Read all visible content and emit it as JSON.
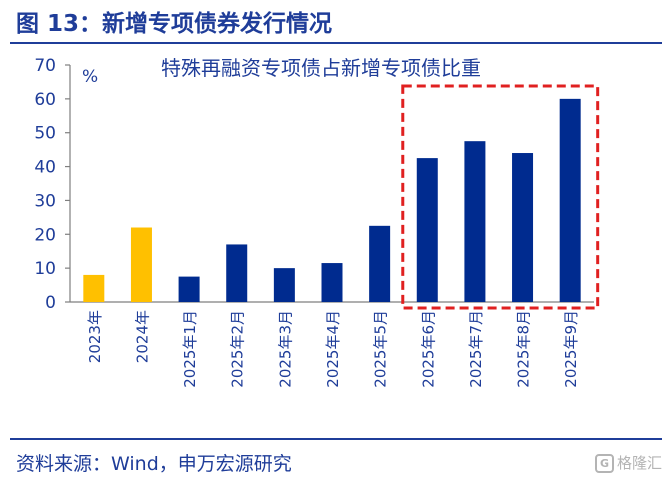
{
  "figure": {
    "title": "图 13：新增专项债券发行情况",
    "source": "资料来源：Wind，申万宏源研究",
    "watermark_icon": "G",
    "watermark": "格隆汇"
  },
  "colors": {
    "highlight_bar": "#ffc000",
    "main_bar": "#002b8f",
    "text": "#1f3d99",
    "box": "#e02020"
  },
  "chart_data": {
    "type": "bar",
    "title": "特殊再融资专项债占新增专项债比重",
    "ylabel": "%",
    "xlabel": "",
    "ylim": [
      0,
      70
    ],
    "yticks": [
      0,
      10,
      20,
      30,
      40,
      50,
      60,
      70
    ],
    "categories": [
      "2023年",
      "2024年",
      "2025年1月",
      "2025年2月",
      "2025年3月",
      "2025年4月",
      "2025年5月",
      "2025年6月",
      "2025年7月",
      "2025年8月",
      "2025年9月"
    ],
    "values": [
      8,
      22,
      7.5,
      17,
      10,
      11.5,
      22.5,
      42.5,
      47.5,
      44,
      60
    ],
    "bar_colors": [
      "#ffc000",
      "#ffc000",
      "#002b8f",
      "#002b8f",
      "#002b8f",
      "#002b8f",
      "#002b8f",
      "#002b8f",
      "#002b8f",
      "#002b8f",
      "#002b8f"
    ],
    "highlight_box_categories": [
      "2025年6月",
      "2025年9月"
    ],
    "grid": false,
    "legend": "none"
  }
}
